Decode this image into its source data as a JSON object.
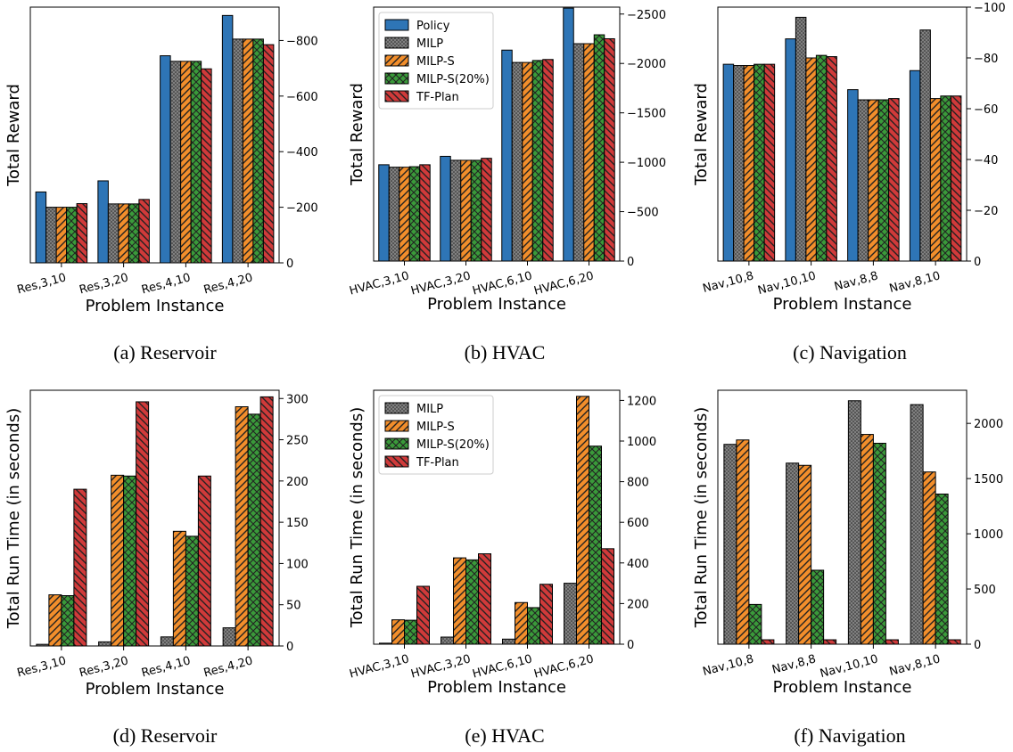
{
  "colors": {
    "Policy": "#2e75b6",
    "MILP": "#808080",
    "MILP-S": "#f28e2b",
    "MILP-S(20%)": "#3a9a3a",
    "TF-Plan": "#d03a3a"
  },
  "chart_data": [
    {
      "id": "a",
      "type": "bar",
      "caption": "(a) Reservoir",
      "xlabel": "Problem Instance",
      "ylabel": "Total Reward",
      "categories": [
        "Res,3,10",
        "Res,3,20",
        "Res,4,10",
        "Res,4,20"
      ],
      "ylim": [
        0,
        920
      ],
      "yticks": [
        0,
        200,
        400,
        600,
        800
      ],
      "ytick_labels": [
        "0",
        "−200",
        "−400",
        "−600",
        "−800"
      ],
      "legend": "",
      "series": [
        {
          "name": "Policy",
          "values": [
            255,
            295,
            745,
            890
          ]
        },
        {
          "name": "MILP",
          "values": [
            200,
            212,
            725,
            805
          ]
        },
        {
          "name": "MILP-S",
          "values": [
            200,
            212,
            725,
            805
          ]
        },
        {
          "name": "MILP-S(20%)",
          "values": [
            200,
            212,
            725,
            805
          ]
        },
        {
          "name": "TF-Plan",
          "values": [
            213,
            228,
            698,
            785
          ]
        }
      ]
    },
    {
      "id": "b",
      "type": "bar",
      "caption": "(b) HVAC",
      "xlabel": "Problem Instance",
      "ylabel": "Total Reward",
      "categories": [
        "HVAC,3,10",
        "HVAC,3,20",
        "HVAC,6,10",
        "HVAC,6,20"
      ],
      "ylim": [
        0,
        2570
      ],
      "yticks": [
        0,
        500,
        1000,
        1500,
        2000,
        2500
      ],
      "ytick_labels": [
        "0",
        "−500",
        "−1000",
        "−1500",
        "−2000",
        "−2500"
      ],
      "legend": "top-left",
      "series": [
        {
          "name": "Policy",
          "values": [
            975,
            1060,
            2135,
            2560
          ]
        },
        {
          "name": "MILP",
          "values": [
            950,
            1020,
            2010,
            2200
          ]
        },
        {
          "name": "MILP-S",
          "values": [
            950,
            1020,
            2010,
            2200
          ]
        },
        {
          "name": "MILP-S(20%)",
          "values": [
            955,
            1020,
            2030,
            2290
          ]
        },
        {
          "name": "TF-Plan",
          "values": [
            975,
            1040,
            2040,
            2250
          ]
        }
      ]
    },
    {
      "id": "c",
      "type": "bar",
      "caption": "(c) Navigation",
      "xlabel": "Problem Instance",
      "ylabel": "Total Reward",
      "categories": [
        "Nav,10,8",
        "Nav,10,10",
        "Nav,8,8",
        "Nav,8,10"
      ],
      "ylim": [
        0,
        100
      ],
      "yticks": [
        0,
        20,
        40,
        60,
        80,
        100
      ],
      "ytick_labels": [
        "0",
        "−20",
        "−40",
        "−60",
        "−80",
        "−100"
      ],
      "legend": "",
      "series": [
        {
          "name": "Policy",
          "values": [
            77.5,
            87.5,
            67.5,
            75.0
          ]
        },
        {
          "name": "MILP",
          "values": [
            77,
            96,
            63.5,
            91
          ]
        },
        {
          "name": "MILP-S",
          "values": [
            77,
            80,
            63.5,
            64
          ]
        },
        {
          "name": "MILP-S(20%)",
          "values": [
            77.5,
            81,
            63.5,
            65
          ]
        },
        {
          "name": "TF-Plan",
          "values": [
            77.5,
            80.5,
            64,
            65
          ]
        }
      ]
    },
    {
      "id": "d",
      "type": "bar",
      "caption": "(d) Reservoir",
      "xlabel": "Problem Instance",
      "ylabel": "Total Run Time (in seconds)",
      "categories": [
        "Res,3,10",
        "Res,3,20",
        "Res,4,10",
        "Res,4,20"
      ],
      "ylim": [
        0,
        310
      ],
      "yticks": [
        0,
        50,
        100,
        150,
        200,
        250,
        300
      ],
      "ytick_labels": [
        "0",
        "50",
        "100",
        "150",
        "200",
        "250",
        "300"
      ],
      "legend": "",
      "series": [
        {
          "name": "MILP",
          "values": [
            2,
            5,
            11,
            22
          ]
        },
        {
          "name": "MILP-S",
          "values": [
            62,
            207,
            139,
            290
          ]
        },
        {
          "name": "MILP-S(20%)",
          "values": [
            61,
            206,
            133,
            281
          ]
        },
        {
          "name": "TF-Plan",
          "values": [
            190,
            296,
            206,
            302
          ]
        }
      ]
    },
    {
      "id": "e",
      "type": "bar",
      "caption": "(e) HVAC",
      "xlabel": "Problem Instance",
      "ylabel": "Total Run Time (in seconds)",
      "categories": [
        "HVAC,3,10",
        "HVAC,3,20",
        "HVAC,6,10",
        "HVAC,6,20"
      ],
      "ylim": [
        0,
        1250
      ],
      "yticks": [
        0,
        200,
        400,
        600,
        800,
        1000,
        1200
      ],
      "ytick_labels": [
        "0",
        "200",
        "400",
        "600",
        "800",
        "1000",
        "1200"
      ],
      "legend": "top-left",
      "series": [
        {
          "name": "MILP",
          "values": [
            5,
            35,
            25,
            300
          ]
        },
        {
          "name": "MILP-S",
          "values": [
            120,
            425,
            205,
            1220
          ]
        },
        {
          "name": "MILP-S(20%)",
          "values": [
            118,
            415,
            180,
            975
          ]
        },
        {
          "name": "TF-Plan",
          "values": [
            285,
            445,
            295,
            470
          ]
        }
      ]
    },
    {
      "id": "f",
      "type": "bar",
      "caption": "(f) Navigation",
      "xlabel": "Problem Instance",
      "ylabel": "Total Run Time (in seconds)",
      "categories": [
        "Nav,10,8",
        "Nav,8,8",
        "Nav,10,10",
        "Nav,8,10"
      ],
      "ylim": [
        0,
        2300
      ],
      "yticks": [
        0,
        500,
        1000,
        1500,
        2000
      ],
      "ytick_labels": [
        "0",
        "500",
        "1000",
        "1500",
        "2000"
      ],
      "legend": "",
      "series": [
        {
          "name": "MILP",
          "values": [
            1810,
            1640,
            2205,
            2170
          ]
        },
        {
          "name": "MILP-S",
          "values": [
            1850,
            1620,
            1900,
            1560
          ]
        },
        {
          "name": "MILP-S(20%)",
          "values": [
            360,
            670,
            1820,
            1360
          ]
        },
        {
          "name": "TF-Plan",
          "values": [
            40,
            40,
            40,
            40
          ]
        }
      ]
    }
  ]
}
